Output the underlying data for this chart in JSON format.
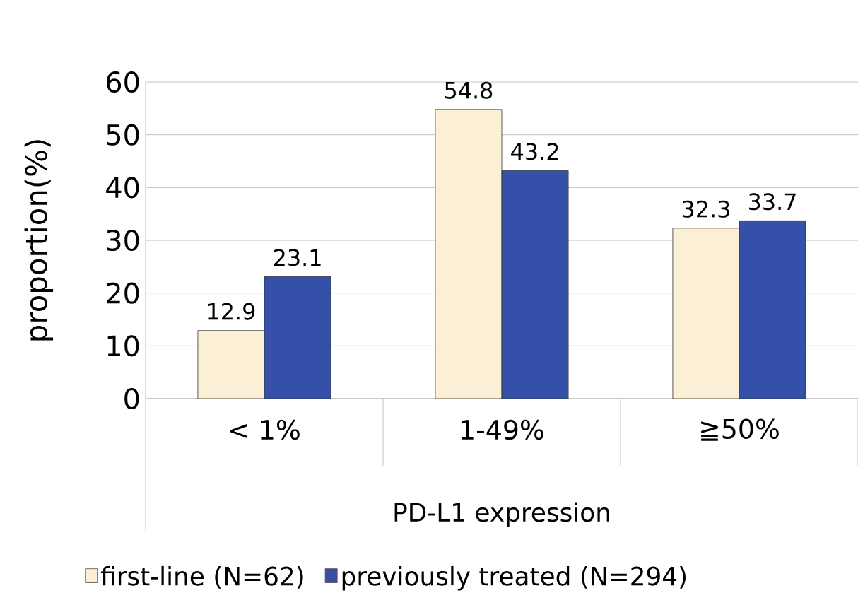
{
  "chart_data": {
    "type": "bar",
    "xlabel": "PD-L1 expression",
    "ylabel": "proportion(%)",
    "categories": [
      "< 1%",
      "1-49%",
      "≧50%"
    ],
    "series": [
      {
        "name": "first-line  (N=62)",
        "color": "#fbf0d5",
        "values": [
          12.9,
          54.8,
          32.3
        ]
      },
      {
        "name": "previously treated (N=294)",
        "color": "#3450a8",
        "values": [
          23.1,
          43.2,
          33.7
        ]
      }
    ],
    "ylim": [
      0,
      60
    ],
    "yticks": [
      0,
      10,
      20,
      30,
      40,
      50,
      60
    ],
    "grid": "y",
    "legend": "bottom",
    "data_labels": true
  }
}
